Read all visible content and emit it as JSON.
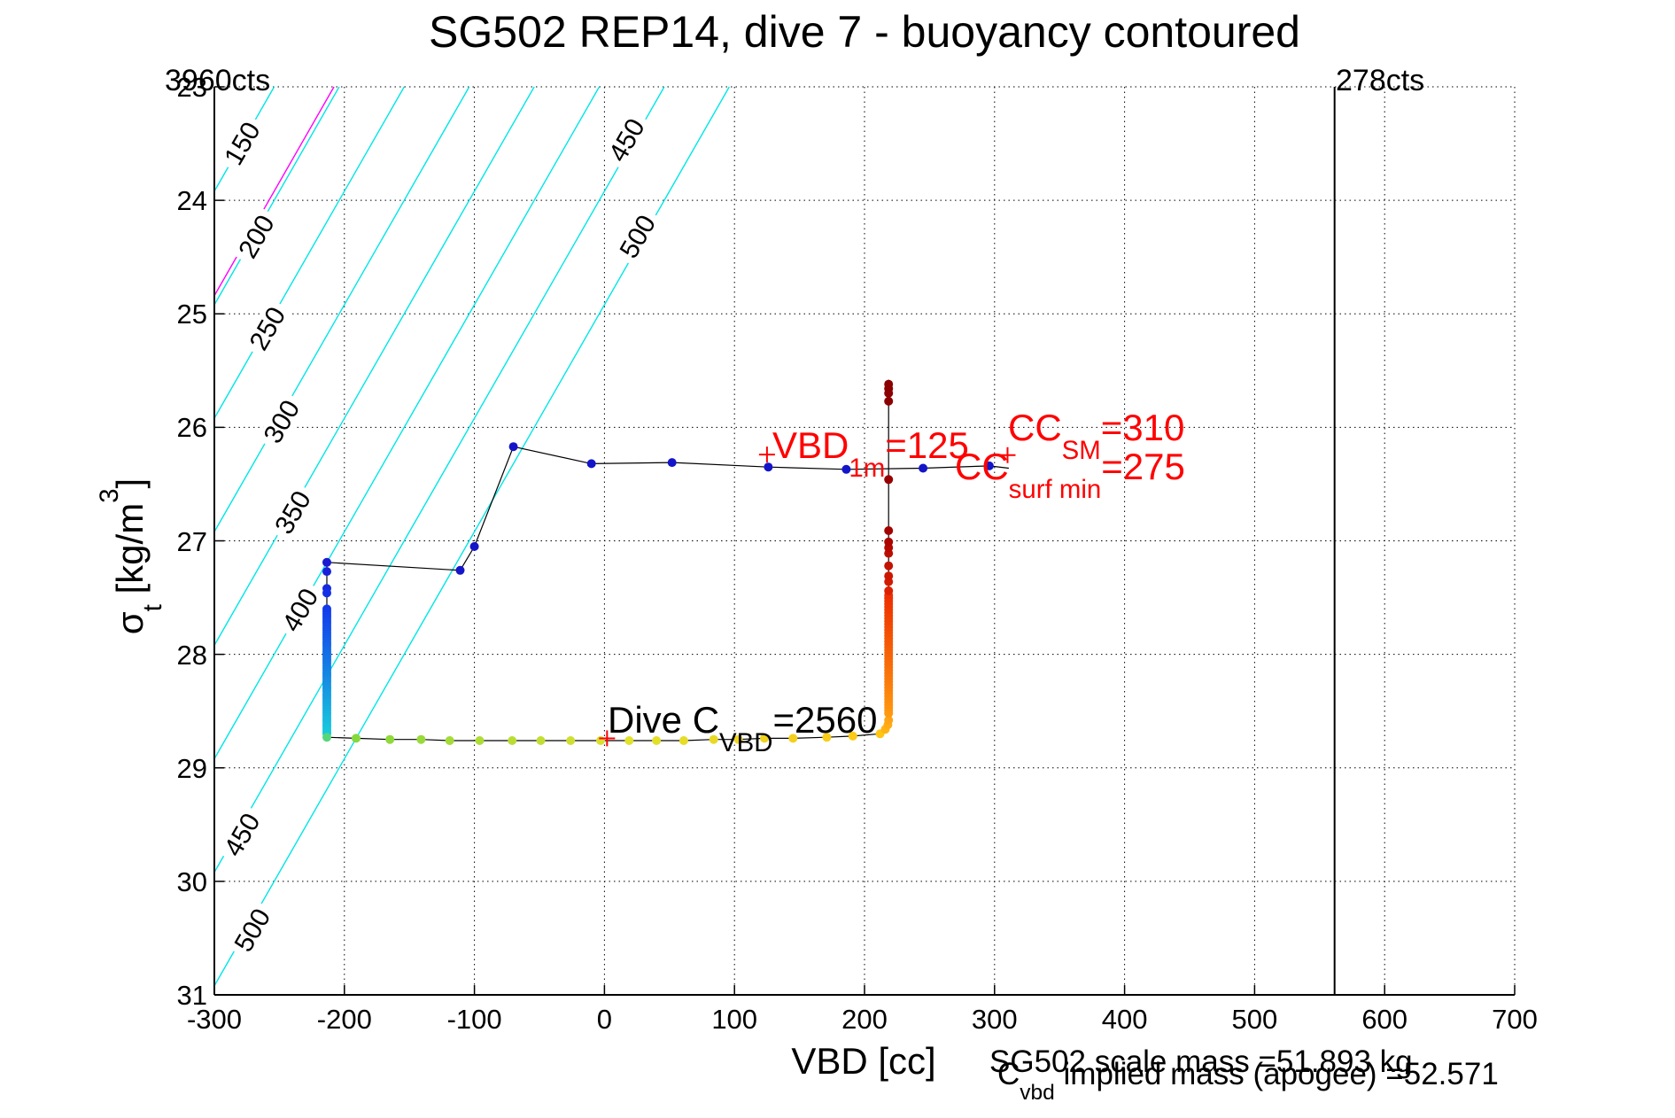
{
  "title": "SG502 REP14, dive 7 - buoyancy contoured",
  "corner_labels": {
    "left": "3960cts",
    "right": "278cts"
  },
  "axes": {
    "xlabel": "VBD [cc]",
    "ylabel": {
      "main": "σ",
      "sub": "t",
      "mid": " [kg/m",
      "sup": "3",
      "end": "]"
    },
    "xticks": [
      -300,
      -200,
      -100,
      0,
      100,
      200,
      300,
      400,
      500,
      600,
      700
    ],
    "yticks": [
      23,
      24,
      25,
      26,
      27,
      28,
      29,
      30,
      31
    ],
    "xlim": [
      -300,
      700
    ],
    "ylim_top_to_bottom": [
      23,
      31
    ]
  },
  "annotations": {
    "vbd1m": {
      "main": "VBD",
      "sub": "1m",
      "rest": "=125"
    },
    "cc_sm": {
      "main": "CC",
      "sub": "SM",
      "rest": "=310"
    },
    "cc_surfmin": {
      "main": "CC",
      "sub": "surf min",
      "rest": "=275"
    },
    "dive_c_vbd": {
      "main": "Dive C",
      "sub": "VBD",
      "rest": "=2560"
    }
  },
  "footer": {
    "scale_mass": "SG502 scale mass =51.893 kg",
    "implied_mass": {
      "main": "C",
      "sub": "vbd",
      "rest": " implied mass (apogee) =52.571"
    }
  },
  "chart_data": {
    "type": "scatter",
    "title": "SG502 REP14, dive 7 - buoyancy contoured",
    "xlabel": "VBD [cc]",
    "ylabel": "sigma_t [kg/m^3]",
    "xlim": [
      -300,
      700
    ],
    "ylim": [
      23,
      31
    ],
    "y_axis_reversed_note": "23 at top, 31 at bottom",
    "grid": "dotted",
    "colors": {
      "contour": "#00E6E6",
      "special_contour": "#FF00FF",
      "annotation": "#FF0000",
      "trajectory_line": "#000000"
    },
    "reference_vline": {
      "x": 561.5,
      "color": "#000000"
    },
    "contours": {
      "slope_sigma_per_cc": -0.02,
      "lines": [
        {
          "value": 150,
          "labels": [
            {
              "vbd": -278.5,
              "sigma": 23.5
            }
          ]
        },
        {
          "value": 200,
          "labels": [
            {
              "vbd": -267.6,
              "sigma": 24.32
            }
          ]
        },
        {
          "value": 250,
          "labels": [
            {
              "vbd": -259.1,
              "sigma": 25.13
            }
          ]
        },
        {
          "value": 300,
          "labels": [
            {
              "vbd": -248.2,
              "sigma": 25.95
            }
          ]
        },
        {
          "value": 350,
          "labels": [
            {
              "vbd": -239.6,
              "sigma": 26.75
            }
          ]
        },
        {
          "value": 400,
          "labels": [
            {
              "vbd": -233.9,
              "sigma": 27.61
            }
          ]
        },
        {
          "value": 450,
          "labels": [
            {
              "vbd": 17.1,
              "sigma": 23.47
            },
            {
              "vbd": -278.7,
              "sigma": 29.59
            }
          ]
        },
        {
          "value": 500,
          "labels": [
            {
              "vbd": 25.6,
              "sigma": 24.32
            },
            {
              "vbd": -270.7,
              "sigma": 30.43
            }
          ]
        }
      ],
      "special_magenta_line": {
        "value": 196
      }
    },
    "plus_markers": [
      {
        "vbd": 125,
        "sigma": 26.24,
        "label": "VBD_1m"
      },
      {
        "vbd": 310,
        "sigma": 26.245,
        "label": "CC_SM"
      },
      {
        "vbd": 2,
        "sigma": 28.74,
        "label": "Dive C_VBD"
      }
    ],
    "trajectory": [
      {
        "name": "surface-line-lead",
        "dots": false,
        "points": [
          [
            311,
            26.36
          ]
        ]
      },
      {
        "name": "surface-line",
        "dots": true,
        "c0": "#1414C8",
        "c1": "#1414C8",
        "points": [
          [
            296,
            26.34
          ],
          [
            245,
            26.36
          ],
          [
            186,
            26.37
          ],
          [
            126,
            26.35
          ],
          [
            52,
            26.31
          ],
          [
            -10,
            26.32
          ],
          [
            -70,
            26.17
          ],
          [
            -100,
            27.05
          ],
          [
            -111,
            27.26
          ]
        ]
      },
      {
        "name": "left-column-top",
        "dots": true,
        "c0": "#1A1AD2",
        "c1": "#1430E6",
        "points": [
          [
            -213.5,
            27.19
          ],
          [
            -213.5,
            27.27
          ],
          [
            -213.5,
            27.42
          ],
          [
            -213.5,
            27.46
          ]
        ]
      },
      {
        "name": "left-column-descent",
        "dots": true,
        "kind": "vrun",
        "vbd": -213.5,
        "s0": 27.6,
        "s1": 28.7,
        "n": 54,
        "c0": "#1238EC",
        "c1": "#18C8DC"
      },
      {
        "name": "left-column-tip",
        "dots": true,
        "c0": "#55D77A",
        "c1": "#55D77A",
        "points": [
          [
            -213.5,
            28.73
          ]
        ]
      },
      {
        "name": "bottom-line-west",
        "dots": true,
        "c0": "#84D83C",
        "c1": "#D8E030",
        "points": [
          [
            -191,
            28.74
          ],
          [
            -165,
            28.75
          ],
          [
            -141,
            28.75
          ],
          [
            -119,
            28.76
          ],
          [
            -96,
            28.76
          ],
          [
            -71,
            28.76
          ],
          [
            -49,
            28.76
          ],
          [
            -26,
            28.76
          ],
          [
            -3,
            28.76
          ]
        ]
      },
      {
        "name": "bottom-line-east",
        "dots": true,
        "c0": "#E0E22C",
        "c1": "#FFC614",
        "points": [
          [
            19,
            28.76
          ],
          [
            40,
            28.76
          ],
          [
            61,
            28.76
          ],
          [
            84,
            28.75
          ],
          [
            103,
            28.75
          ],
          [
            123,
            28.74
          ],
          [
            145,
            28.74
          ],
          [
            171,
            28.73
          ],
          [
            191,
            28.72
          ],
          [
            212,
            28.7
          ]
        ]
      },
      {
        "name": "bottom-bend",
        "dots": true,
        "c0": "#FFB414",
        "c1": "#FFA414",
        "points": [
          [
            216,
            28.66
          ],
          [
            218,
            28.62
          ],
          [
            218.5,
            28.58
          ]
        ]
      },
      {
        "name": "right-column-climb",
        "dots": true,
        "kind": "vrun",
        "vbd": 218.5,
        "s0": 28.52,
        "s1": 27.48,
        "n": 42,
        "c0": "#FF9A10",
        "c1": "#EE3000"
      },
      {
        "name": "right-column-sparse",
        "dots": true,
        "c0": "#DC2000",
        "c1": "#A40000",
        "points": [
          [
            218.5,
            27.44
          ],
          [
            218.5,
            27.36
          ],
          [
            218.5,
            27.31
          ],
          [
            218.5,
            27.22
          ],
          [
            218.5,
            27.11
          ],
          [
            218.5,
            27.06
          ],
          [
            218.5,
            27.01
          ],
          [
            218.5,
            26.91
          ]
        ]
      },
      {
        "name": "right-column-single",
        "dots": true,
        "c0": "#960000",
        "c1": "#960000",
        "points": [
          [
            218.5,
            26.46
          ]
        ]
      },
      {
        "name": "right-column-surface-dots",
        "dots": true,
        "c0": "#8B0000",
        "c1": "#8B0000",
        "points": [
          [
            218.5,
            25.77
          ],
          [
            218.5,
            25.7
          ],
          [
            218.5,
            25.66
          ],
          [
            218.5,
            25.62
          ]
        ]
      },
      {
        "name": "right-column-lead",
        "dots": false,
        "points": [
          [
            218.5,
            25.58
          ]
        ]
      }
    ]
  }
}
